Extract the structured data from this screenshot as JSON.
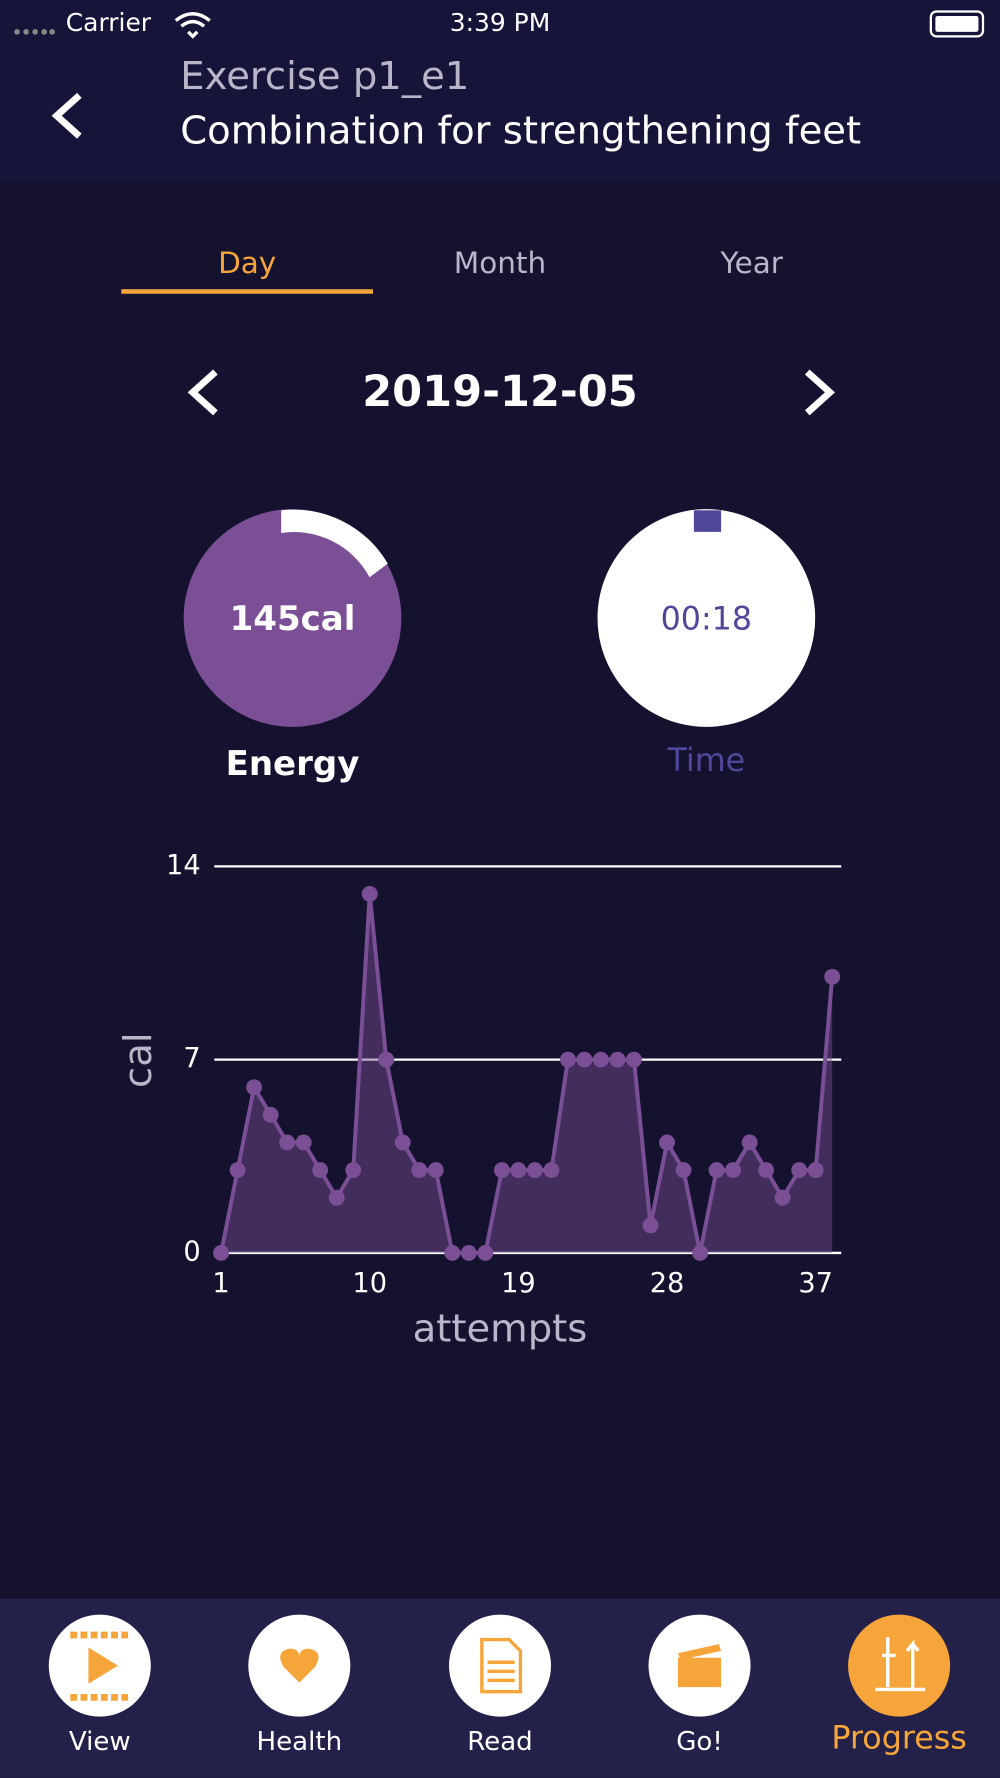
{
  "status_bar": {
    "carrier": "Carrier",
    "time": "3:39 PM"
  },
  "header": {
    "subtitle": "Exercise p1_e1",
    "title": "Combination for strengthening feet"
  },
  "tabs": [
    "Day",
    "Month",
    "Year"
  ],
  "date": "2019-12-05",
  "gauges": [
    {
      "value": "145cal",
      "label": "Energy"
    },
    {
      "value": "00:18",
      "label": "Time"
    }
  ],
  "chart_data": {
    "type": "area",
    "x": [
      1,
      2,
      3,
      4,
      5,
      6,
      7,
      8,
      9,
      10,
      11,
      12,
      13,
      14,
      15,
      16,
      17,
      18,
      19,
      20,
      21,
      22,
      23,
      24,
      25,
      26,
      27,
      28,
      29,
      30,
      31,
      32,
      33,
      34,
      35,
      36,
      37,
      38
    ],
    "values": [
      0,
      3,
      6,
      5,
      4,
      4,
      3,
      2,
      3,
      13,
      7,
      4,
      3,
      3,
      0,
      0,
      0,
      3,
      3,
      3,
      3,
      7,
      7,
      7,
      7,
      7,
      1,
      4,
      3,
      0,
      3,
      3,
      4,
      3,
      2,
      3,
      3,
      10
    ],
    "color": "#7b4f96",
    "xlabel": "attempts",
    "ylabel": "cal",
    "xlim": [
      1,
      38
    ],
    "ylim": [
      0,
      14
    ],
    "xticks": [
      1,
      10,
      19,
      28,
      37
    ],
    "yticks": [
      0,
      7,
      14
    ],
    "grid": true
  },
  "tab_bar": [
    "View",
    "Health",
    "Read",
    "Go!",
    "Progress"
  ]
}
